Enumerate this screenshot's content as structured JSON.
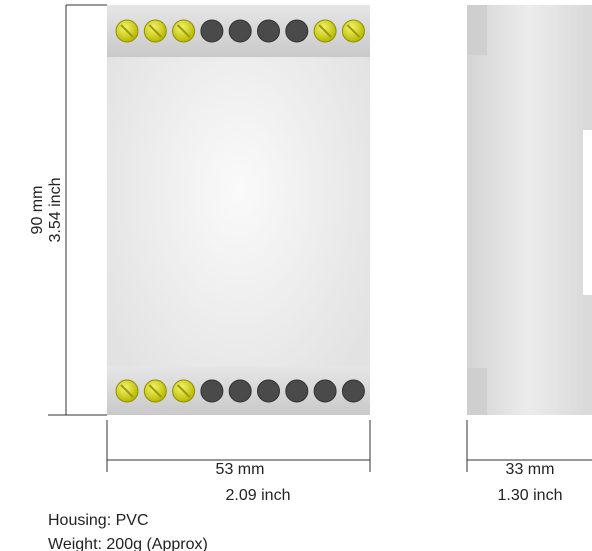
{
  "front_view": {
    "height_mm": "90 mm",
    "height_inch": "3.54 inch",
    "width_mm": "53 mm",
    "width_inch": "2.09 inch"
  },
  "side_view": {
    "depth_mm": "33 mm",
    "depth_inch": "1.30 inch"
  },
  "notes": {
    "housing": "Housing: PVC",
    "weight": "Weight: 200g (Approx)"
  }
}
